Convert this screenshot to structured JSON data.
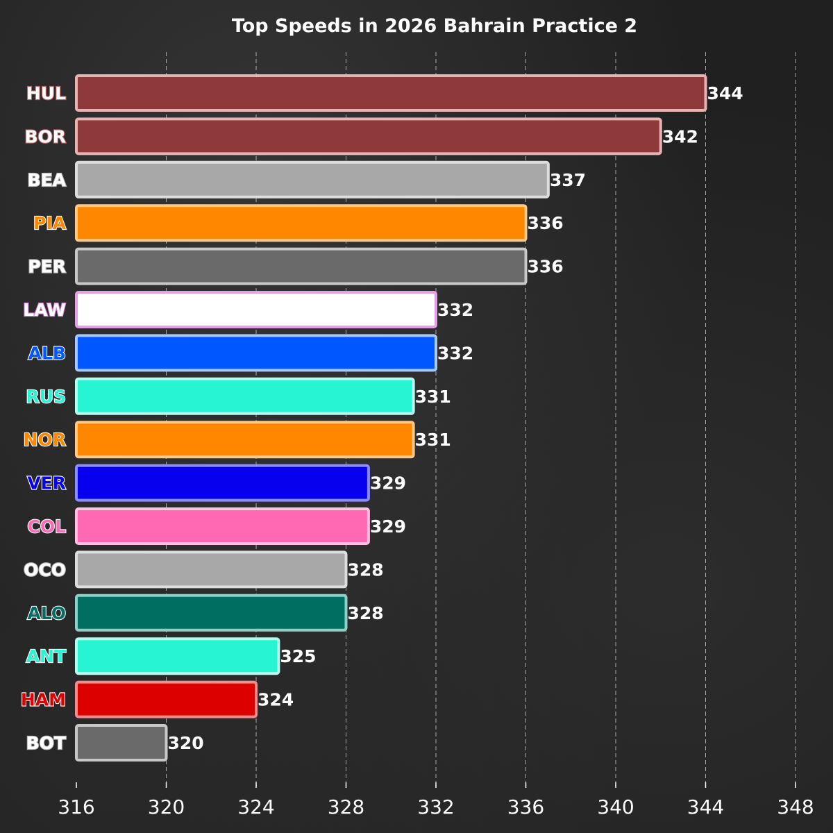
{
  "chart_data": {
    "type": "bar",
    "orientation": "horizontal",
    "title": "Top Speeds in 2026 Bahrain Practice 2",
    "xlabel": "",
    "ylabel": "",
    "xlim": [
      316,
      348
    ],
    "x_ticks": [
      316,
      320,
      324,
      328,
      332,
      336,
      340,
      344,
      348
    ],
    "grid": "vertical dashed",
    "categories": [
      "HUL",
      "BOR",
      "BEA",
      "PIA",
      "PER",
      "LAW",
      "ALB",
      "RUS",
      "NOR",
      "VER",
      "COL",
      "OCO",
      "ALO",
      "ANT",
      "HAM",
      "BOT"
    ],
    "values": [
      344,
      342,
      337,
      336,
      336,
      332,
      332,
      331,
      331,
      329,
      329,
      328,
      328,
      325,
      324,
      320
    ],
    "bar_colors": [
      "#8f3a3a",
      "#8f3a3a",
      "#a8a8a8",
      "#ff8700",
      "#6a6a6a",
      "#ffffff",
      "#0056ff",
      "#27f4d2",
      "#ff8700",
      "#0600ef",
      "#ff69b4",
      "#a8a8a8",
      "#006f62",
      "#27f4d2",
      "#dc0000",
      "#6a6a6a"
    ],
    "edge_colors": [
      "#e6b3b3",
      "#e6b3b3",
      "#dddddd",
      "#ffc98a",
      "#c8c8c8",
      "#e69ee6",
      "#a8c6ff",
      "#b8fbee",
      "#ffc98a",
      "#8c8cff",
      "#ffc2e0",
      "#dddddd",
      "#8fcfc6",
      "#b8fbee",
      "#f08e8e",
      "#c8c8c8"
    ],
    "label_colors": [
      "#ffffff",
      "#ffffff",
      "#ffffff",
      "#ff8700",
      "#ffffff",
      "#ffffff",
      "#0056ff",
      "#27f4d2",
      "#ff8700",
      "#0600ef",
      "#ff69b4",
      "#ffffff",
      "#006f62",
      "#27f4d2",
      "#dc0000",
      "#ffffff"
    ],
    "label_stroke_colors": [
      "#c86464",
      "#c86464",
      "#bbbbbb",
      "#ffffff",
      "#bbbbbb",
      "#e080e0",
      "#ffffff",
      "#ffffff",
      "#ffffff",
      "#ffffff",
      "#ffffff",
      "#bbbbbb",
      "#ffffff",
      "#ffffff",
      "#ffffff",
      "#bbbbbb"
    ]
  }
}
